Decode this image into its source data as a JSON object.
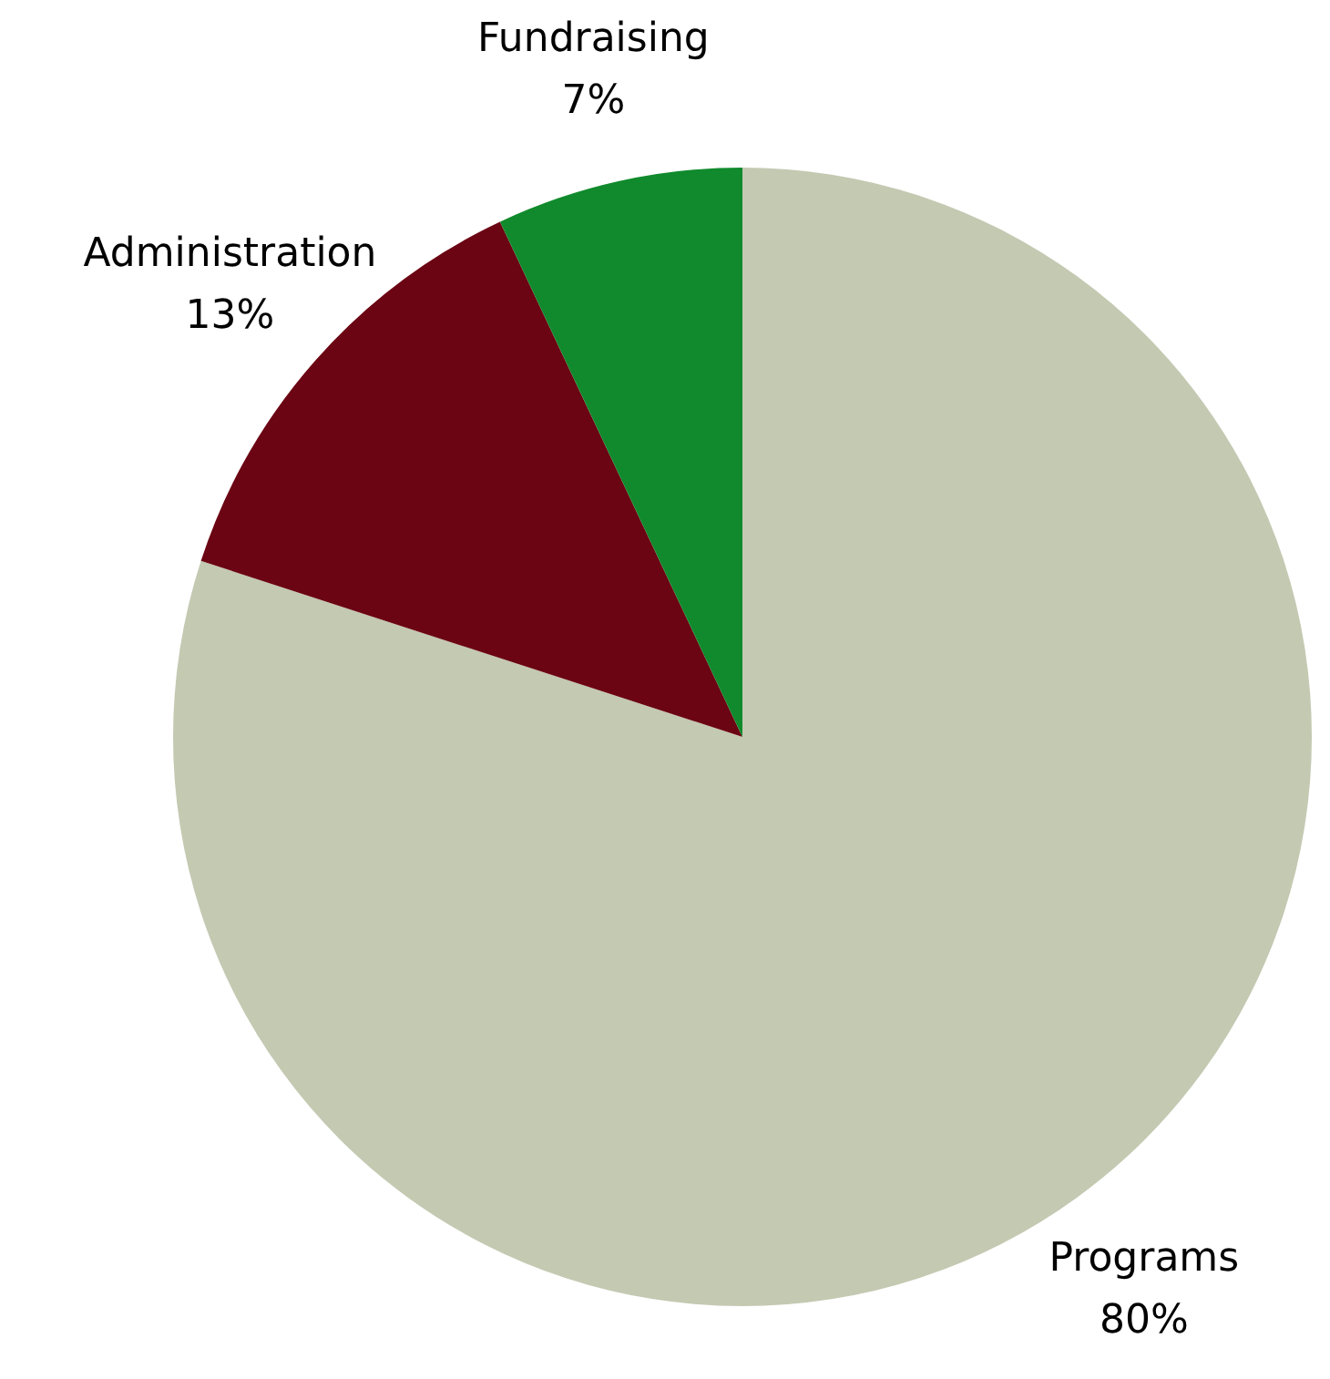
{
  "chart_data": {
    "type": "pie",
    "categories": [
      "Programs",
      "Administration",
      "Fundraising"
    ],
    "values": [
      80,
      13,
      7
    ],
    "colors": [
      "#c4c9b2",
      "#6b0513",
      "#108a2c"
    ],
    "value_labels": [
      "80%",
      "13%",
      "7%"
    ],
    "legend": false
  }
}
